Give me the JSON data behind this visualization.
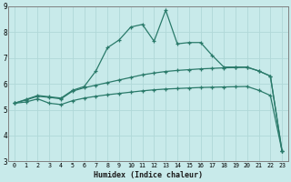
{
  "xlabel": "Humidex (Indice chaleur)",
  "bg_color": "#c8eaea",
  "grid_color": "#b0d8d8",
  "line_color": "#2a7a6a",
  "xlim": [
    -0.5,
    23.5
  ],
  "ylim": [
    3,
    9
  ],
  "xticks": [
    0,
    1,
    2,
    3,
    4,
    5,
    6,
    7,
    8,
    9,
    10,
    11,
    12,
    13,
    14,
    15,
    16,
    17,
    18,
    19,
    20,
    21,
    22,
    23
  ],
  "yticks": [
    3,
    4,
    5,
    6,
    7,
    8,
    9
  ],
  "series_upper_x": [
    0,
    1,
    2,
    3,
    4,
    5,
    6,
    7,
    8,
    9,
    10,
    11,
    12,
    13,
    14,
    15,
    16,
    17,
    18,
    19,
    20,
    21,
    22,
    23
  ],
  "series_upper_y": [
    5.25,
    5.4,
    5.55,
    5.5,
    5.45,
    5.75,
    5.9,
    6.5,
    7.4,
    7.7,
    8.2,
    8.3,
    7.65,
    8.85,
    7.55,
    7.6,
    7.6,
    7.1,
    6.65,
    6.65,
    6.65,
    6.5,
    6.3,
    3.4
  ],
  "series_mid_x": [
    0,
    1,
    2,
    3,
    4,
    5,
    6,
    7,
    8,
    9,
    10,
    11,
    12,
    13,
    14,
    15,
    16,
    17,
    18,
    19,
    20,
    21,
    22,
    23
  ],
  "series_mid_y": [
    5.25,
    5.38,
    5.52,
    5.48,
    5.42,
    5.72,
    5.85,
    5.95,
    6.05,
    6.15,
    6.25,
    6.35,
    6.42,
    6.48,
    6.52,
    6.55,
    6.58,
    6.6,
    6.62,
    6.63,
    6.64,
    6.5,
    6.3,
    3.4
  ],
  "series_low_x": [
    0,
    1,
    2,
    3,
    4,
    5,
    6,
    7,
    8,
    9,
    10,
    11,
    12,
    13,
    14,
    15,
    16,
    17,
    18,
    19,
    20,
    21,
    22,
    23
  ],
  "series_low_y": [
    5.25,
    5.3,
    5.42,
    5.25,
    5.2,
    5.35,
    5.45,
    5.52,
    5.58,
    5.63,
    5.68,
    5.73,
    5.77,
    5.8,
    5.82,
    5.84,
    5.86,
    5.87,
    5.88,
    5.89,
    5.9,
    5.75,
    5.55,
    3.4
  ]
}
